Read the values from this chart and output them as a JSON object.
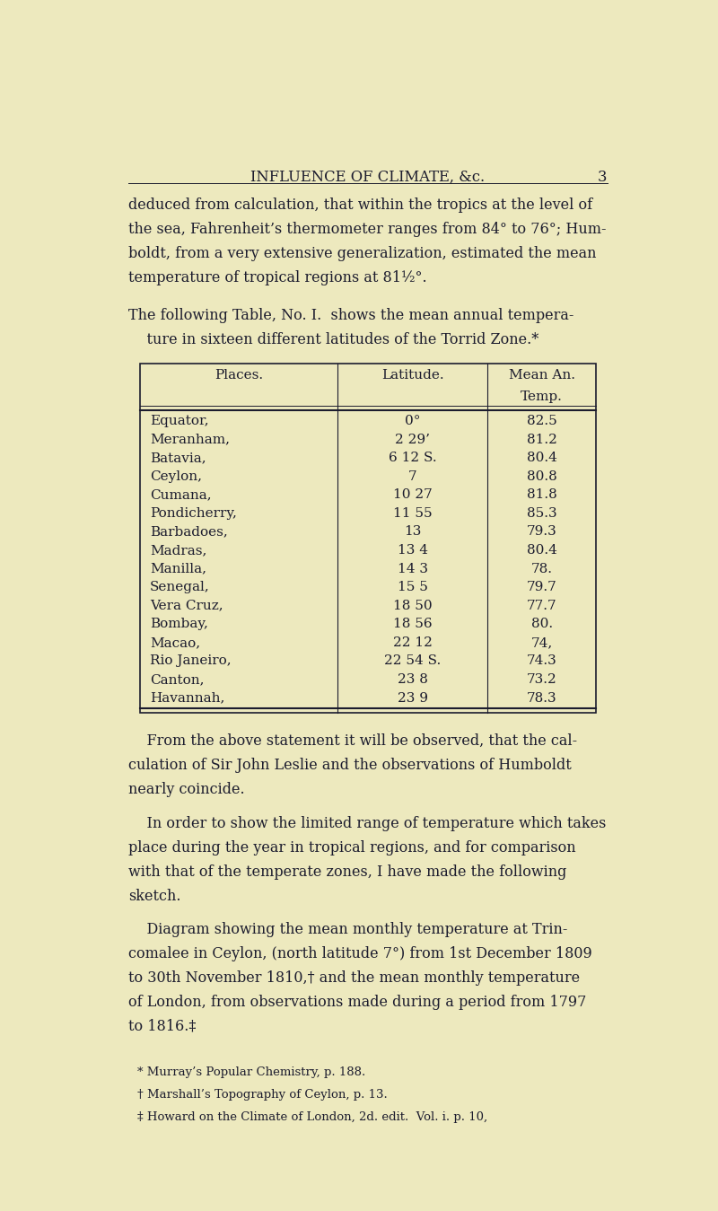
{
  "background_color": "#ede9be",
  "header_title": "INFLUENCE OF CLIMATE, &c.",
  "header_page_num": "3",
  "p1_lines": [
    "deduced from calculation, that within the tropics at the level of",
    "the sea, Fahrenheit’s thermometer ranges from 84° to 76°; Hum-",
    "boldt, from a very extensive generalization, estimated the mean",
    "temperature of tropical regions at 81½°."
  ],
  "p2_lines": [
    "The following Table, No. I.  shows the mean annual tempera-",
    "    ture in sixteen different latitudes of the Torrid Zone.*"
  ],
  "table_header_col1": "Places.",
  "table_header_col2": "Latitude.",
  "table_header_col3a": "Mean An.",
  "table_header_col3b": "Temp.",
  "table_rows": [
    [
      "Equator,",
      "0°",
      "82.5"
    ],
    [
      "Meranham,",
      "2 29’",
      "81.2"
    ],
    [
      "Batavia,",
      "6 12 S.",
      "80.4"
    ],
    [
      "Ceylon,",
      "7",
      "80.8"
    ],
    [
      "Cumana,",
      "10 27",
      "81.8"
    ],
    [
      "Pondicherry,",
      "11 55",
      "85.3"
    ],
    [
      "Barbadoes,",
      "13",
      "79.3"
    ],
    [
      "Madras,",
      "13 4",
      "80.4"
    ],
    [
      "Manilla,",
      "14 3",
      "78."
    ],
    [
      "Senegal,",
      "15 5",
      "79.7"
    ],
    [
      "Vera Cruz,",
      "18 50",
      "77.7"
    ],
    [
      "Bombay,",
      "18 56",
      "80."
    ],
    [
      "Macao,",
      "22 12",
      "74,"
    ],
    [
      "Rio Janeiro,",
      "22 54 S.",
      "74.3"
    ],
    [
      "Canton,",
      "23 8",
      "73.2"
    ],
    [
      "Havannah,",
      "23 9",
      "78.3"
    ]
  ],
  "p3_lines": [
    "    From the above statement it will be observed, that the cal-",
    "culation of Sir John Leslie and the observations of Humboldt",
    "nearly coincide."
  ],
  "p4_lines": [
    "    In order to show the limited range of temperature which takes",
    "place during the year in tropical regions, and for comparison",
    "with that of the temperate zones, I have made the following",
    "sketch."
  ],
  "p5_lines": [
    "    Diagram showing the mean monthly temperature at Trin-",
    "comalee in Ceylon, (north latitude 7°) from 1st December 1809",
    "to 30th November 1810,† and the mean monthly temperature",
    "of London, from observations made during a period from 1797",
    "to 1816.‡"
  ],
  "footnotes": [
    "* Murray’s Popular Chemistry, p. 188.",
    "† Marshall’s Topography of Ceylon, p. 13.",
    "‡ Howard on the Climate of London, 2d. edit.  Vol. i. p. 10,"
  ],
  "text_color": "#1c1c2e",
  "font_size_body": 11.5,
  "font_size_header_title": 11.8,
  "font_size_table": 11.0,
  "font_size_footnote": 9.5
}
